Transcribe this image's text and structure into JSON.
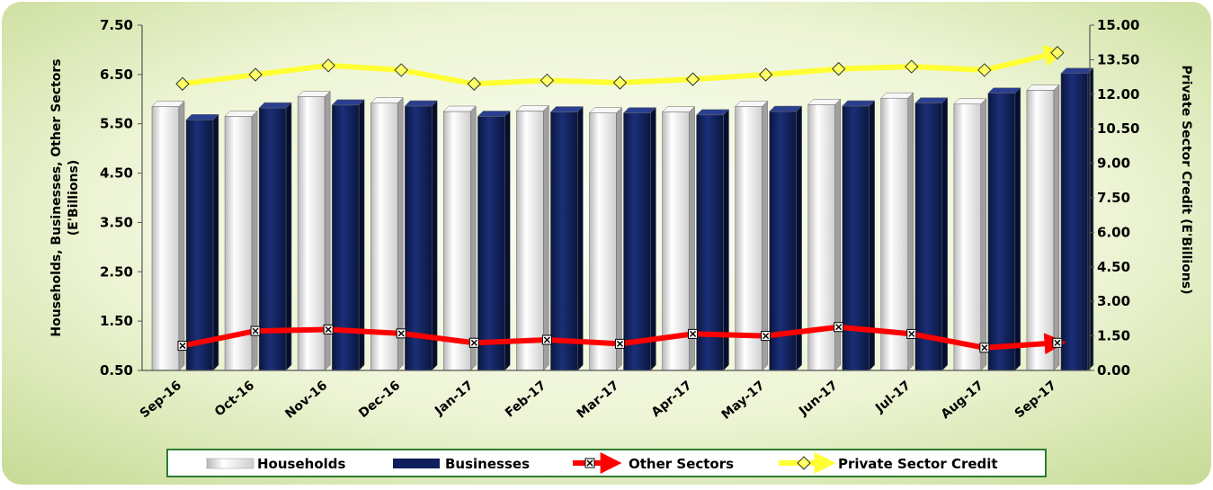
{
  "chart_data": {
    "type": "bar",
    "categories": [
      "Sep-16",
      "Oct-16",
      "Nov-16",
      "Dec-16",
      "Jan-17",
      "Feb-17",
      "Mar-17",
      "Apr-17",
      "May-17",
      "Jun-17",
      "Jul-17",
      "Aug-17",
      "Sep-17"
    ],
    "y_left": {
      "title_line1": "Households, Businesses, Other Sectors",
      "title_line2": "(E'Billions)",
      "min": 0.5,
      "max": 7.5,
      "ticks": [
        "0.50",
        "1.50",
        "2.50",
        "3.50",
        "4.50",
        "5.50",
        "6.50",
        "7.50"
      ]
    },
    "y_right": {
      "title": "Private Sector Credit (E'Billions)",
      "min": 0,
      "max": 15,
      "ticks": [
        "0.00",
        "1.50",
        "3.00",
        "4.50",
        "6.00",
        "7.50",
        "9.00",
        "10.50",
        "12.00",
        "13.50",
        "15.00"
      ]
    },
    "series": [
      {
        "name": "Households",
        "type": "bar",
        "axis": "left",
        "color": "#e8e8e8",
        "values": [
          5.85,
          5.65,
          6.05,
          5.92,
          5.75,
          5.76,
          5.72,
          5.74,
          5.85,
          5.89,
          6.02,
          5.9,
          6.18
        ]
      },
      {
        "name": "Businesses",
        "type": "bar",
        "axis": "left",
        "color": "#0f1f5c",
        "values": [
          5.58,
          5.82,
          5.88,
          5.86,
          5.65,
          5.74,
          5.72,
          5.68,
          5.75,
          5.86,
          5.92,
          6.12,
          6.52
        ]
      },
      {
        "name": "Other Sectors",
        "type": "line",
        "axis": "left",
        "color": "#ff0000",
        "values": [
          1.0,
          1.3,
          1.33,
          1.25,
          1.06,
          1.12,
          1.04,
          1.24,
          1.2,
          1.38,
          1.24,
          0.96,
          1.06
        ]
      },
      {
        "name": "Private Sector Credit",
        "type": "line",
        "axis": "right",
        "color": "#ffff33",
        "values": [
          12.45,
          12.85,
          13.25,
          13.05,
          12.45,
          12.6,
          12.5,
          12.65,
          12.85,
          13.1,
          13.2,
          13.05,
          13.8
        ]
      }
    ],
    "legend_position": "bottom",
    "grid": false,
    "colors": {
      "background_outer": "#c9dd9a",
      "background_inner": "#f4f9e4",
      "legend_border": "#2e7d32"
    }
  }
}
